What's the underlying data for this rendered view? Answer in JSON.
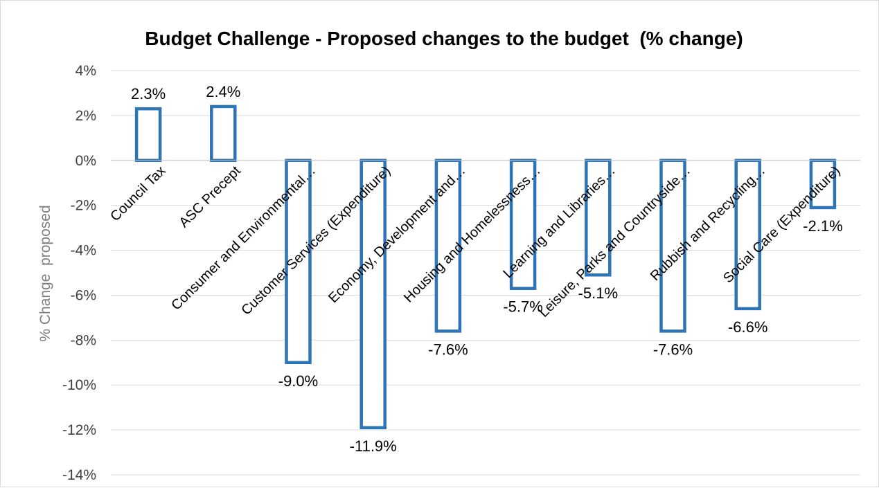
{
  "chart_data": {
    "type": "bar",
    "title": "Budget Challenge - Proposed changes to the budget  (% change)",
    "ylabel": "% Change  proposed",
    "xlabel": "",
    "ylim": [
      -14,
      4
    ],
    "yticks": [
      4,
      2,
      0,
      -2,
      -4,
      -6,
      -8,
      -10,
      -12,
      -14
    ],
    "ytick_labels": [
      "4%",
      "2%",
      "0%",
      "-2%",
      "-4%",
      "-6%",
      "-8%",
      "-10%",
      "-12%",
      "-14%"
    ],
    "grid": true,
    "legend": "none",
    "categories": [
      "Council Tax",
      "ASC Precept",
      "Consumer and Environmental…",
      "Customer Services (Expenditure)",
      "Economy, Development and…",
      "Housing and Homelessness…",
      "Learning and Libraries…",
      "Leisure, Parks and Countryside…",
      "Rubbish and Recycling…",
      "Social Care (Expenditure)"
    ],
    "values": [
      2.3,
      2.4,
      -9.0,
      -11.9,
      -7.6,
      -5.7,
      -5.1,
      -7.6,
      -6.6,
      -2.1
    ],
    "data_labels": [
      "2.3%",
      "2.4%",
      "-9.0%",
      "-11.9%",
      "-7.6%",
      "-5.7%",
      "-5.1%",
      "-7.6%",
      "-6.6%",
      "-2.1%"
    ],
    "bar_outline_color": "#2e75b6",
    "bar_fill_color": "#ffffff"
  }
}
